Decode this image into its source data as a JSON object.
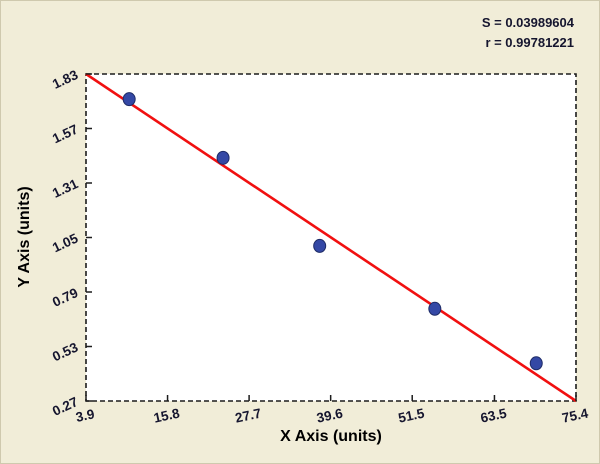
{
  "stats": {
    "s": "S = 0.03989604",
    "r": "r = 0.99781221"
  },
  "chart_data": {
    "type": "scatter",
    "title": "",
    "xlabel": "X Axis (units)",
    "ylabel": "Y Axis (units)",
    "xlim": [
      3.9,
      75.4
    ],
    "ylim": [
      0.27,
      1.83
    ],
    "grid": false,
    "legend": false,
    "x_ticks": {
      "values": [
        3.9,
        15.8,
        27.7,
        39.6,
        51.5,
        63.5,
        75.4
      ],
      "labels": [
        "3.9",
        "15.8",
        "27.7",
        "39.6",
        "51.5",
        "63.5",
        "75.4"
      ]
    },
    "y_ticks": {
      "values": [
        0.27,
        0.53,
        0.79,
        1.05,
        1.31,
        1.57,
        1.83
      ],
      "labels": [
        "0.27",
        "0.53",
        "0.79",
        "1.05",
        "1.31",
        "1.57",
        "1.83"
      ]
    },
    "points": [
      {
        "x": 10.2,
        "y": 1.71
      },
      {
        "x": 23.9,
        "y": 1.43
      },
      {
        "x": 38.0,
        "y": 1.01
      },
      {
        "x": 54.8,
        "y": 0.71
      },
      {
        "x": 69.6,
        "y": 0.45
      }
    ],
    "fit_line": {
      "x1": 3.9,
      "y1": 1.83,
      "x2": 75.4,
      "y2": 0.27
    },
    "fit_stats": {
      "S": "0.03989604",
      "r": "0.99781221"
    },
    "colors": {
      "background": "#f1edd8",
      "plot_background": "#ffffff",
      "plot_border": "#1c1c1c",
      "point_fill": "#3448a5",
      "point_stroke": "#1e2b66",
      "line": "#f11010",
      "text": "#15152e"
    }
  }
}
